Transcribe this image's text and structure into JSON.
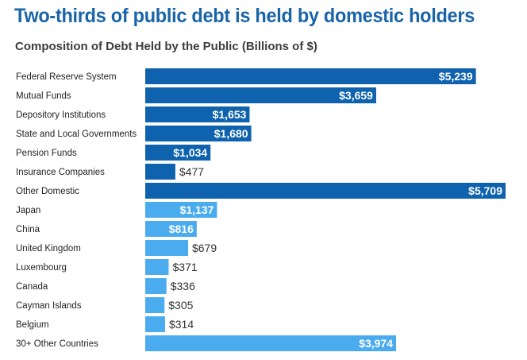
{
  "title": "Two-thirds of public debt is held by domestic holders",
  "chart_data": {
    "type": "bar",
    "orientation": "horizontal",
    "title": "Two-thirds of public debt is held by domestic holders",
    "subtitle": "Composition of Debt Held by the Public (Billions of $)",
    "xlabel": "",
    "ylabel": "",
    "grid": false,
    "categories": [
      "Federal Reserve System",
      "Mutual Funds",
      "Depository Institutions",
      "State and Local Governments",
      "Pension Funds",
      "Insurance Companies",
      "Other Domestic",
      "Japan",
      "China",
      "United Kingdom",
      "Luxembourg",
      "Canada",
      "Cayman Islands",
      "Belgium",
      "30+ Other Countries"
    ],
    "values": [
      5239,
      3659,
      1653,
      1680,
      1034,
      477,
      5709,
      1137,
      816,
      679,
      371,
      336,
      305,
      314,
      3974
    ],
    "labels": [
      "$5,239",
      "$3,659",
      "$1,653",
      "$1,680",
      "$1,034",
      "$477",
      "$5,709",
      "$1,137",
      "$816",
      "$679",
      "$371",
      "$336",
      "$305",
      "$314",
      "$3,974"
    ],
    "groups": [
      "domestic",
      "domestic",
      "domestic",
      "domestic",
      "domestic",
      "domestic",
      "domestic",
      "foreign",
      "foreign",
      "foreign",
      "foreign",
      "foreign",
      "foreign",
      "foreign",
      "foreign"
    ],
    "colors": {
      "domestic": "#0f62ad",
      "foreign": "#4aabef",
      "title": "#1a64a8"
    },
    "xlim": [
      0,
      5709
    ]
  }
}
